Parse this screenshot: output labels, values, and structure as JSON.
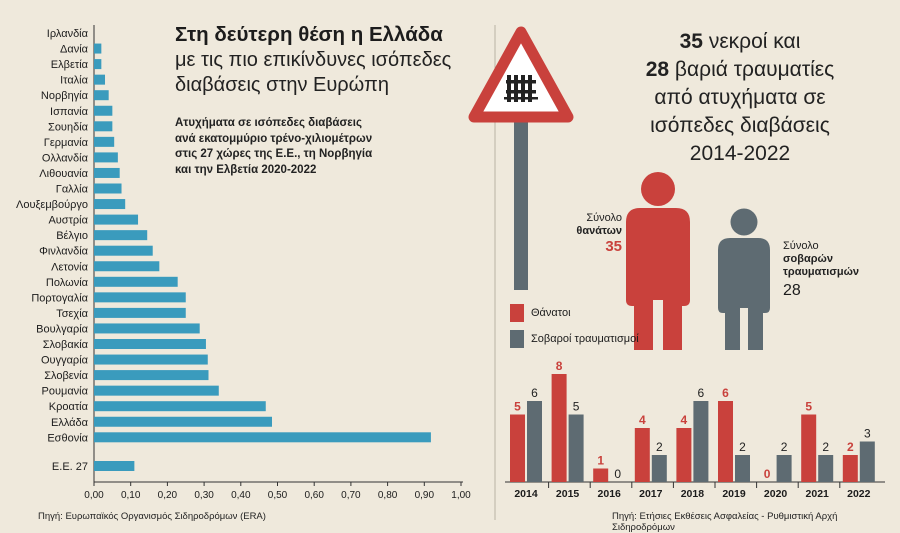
{
  "left": {
    "title_bold": "Στη δεύτερη θέση η Ελλάδα",
    "title_line2": "με τις πιο επικίνδυνες ισόπεδες",
    "title_line3": "διαβάσεις στην Ευρώπη",
    "desc_line1": "Ατυχήματα σε ισόπεδες διαβάσεις",
    "desc_line2": "ανά εκατομμύριο τρένο-χιλιομέτρων",
    "desc_line3": "στις 27 χώρες της Ε.Ε., τη Νορβηγία",
    "desc_line4": "και την Ελβετία 2020-2022",
    "source": "Πηγή: Ευρωπαϊκός Οργανισμός Σιδηροδρόμων (ERA)"
  },
  "right": {
    "title_num1": "35",
    "title_rest1": " νεκροί και",
    "title_num2": "28",
    "title_rest2": " βαριά τραυματίες",
    "title_line3": "από ατυχήματα σε",
    "title_line4": "ισόπεδες διαβάσεις",
    "title_line5": "2014-2022",
    "deaths_label_1": "Σύνολο",
    "deaths_label_2": "θανάτων",
    "deaths_total": "35",
    "injuries_label_1": "Σύνολο",
    "injuries_label_2": "σοβαρών",
    "injuries_label_3": "τραυματισμών",
    "injuries_total": "28",
    "legend_deaths": "Θάνατοι",
    "legend_injuries": "Σοβαροί τραυματισμοί",
    "source": "Πηγή: Ετήσιες Εκθέσεις Ασφαλείας - Ρυθμιστική Αρχή Σιδηροδρόμων"
  },
  "colors": {
    "background": "#efe9dc",
    "bar_blue": "#3a9bbd",
    "deaths_red": "#c9413c",
    "injuries_gray": "#5e6b72",
    "sign_border": "#c9413c"
  },
  "icons": [
    "railway-crossing-sign-icon",
    "person-red-icon",
    "person-gray-icon"
  ],
  "chart_data": [
    {
      "type": "bar",
      "orientation": "horizontal",
      "categories": [
        "Ιρλανδία",
        "Δανία",
        "Ελβετία",
        "Ιταλία",
        "Νορβηγία",
        "Ισπανία",
        "Σουηδία",
        "Γερμανία",
        "Ολλανδία",
        "Λιθουανία",
        "Γαλλία",
        "Λουξεμβούργο",
        "Αυστρία",
        "Βέλγιο",
        "Φινλανδία",
        "Λετονία",
        "Πολωνία",
        "Πορτογαλία",
        "Τσεχία",
        "Βουλγαρία",
        "Σλοβακία",
        "Ουγγαρία",
        "Σλοβενία",
        "Ρουμανία",
        "Κροατία",
        "Ελλάδα",
        "Εσθονία"
      ],
      "values": [
        0.0,
        0.02,
        0.02,
        0.03,
        0.04,
        0.05,
        0.05,
        0.055,
        0.065,
        0.07,
        0.075,
        0.085,
        0.12,
        0.145,
        0.16,
        0.178,
        0.228,
        0.25,
        0.25,
        0.288,
        0.305,
        0.31,
        0.312,
        0.34,
        0.468,
        0.485,
        0.918
      ],
      "extra_category": "Ε.Ε. 27",
      "extra_value": 0.11,
      "xlim": [
        0,
        1.0
      ],
      "ticks": [
        "0,00",
        "0,10",
        "0,20",
        "0,30",
        "0,40",
        "0,50",
        "0,60",
        "0,70",
        "0,80",
        "0,90",
        "1,00"
      ]
    },
    {
      "type": "bar",
      "categories": [
        "2014",
        "2015",
        "2016",
        "2017",
        "2018",
        "2019",
        "2020",
        "2021",
        "2022"
      ],
      "series": [
        {
          "name": "Θάνατοι",
          "values": [
            5,
            8,
            1,
            4,
            4,
            6,
            0,
            5,
            2
          ]
        },
        {
          "name": "Σοβαροί τραυματισμοί",
          "values": [
            6,
            5,
            0,
            2,
            6,
            2,
            2,
            2,
            3
          ]
        }
      ],
      "ylim": [
        0,
        8
      ]
    }
  ]
}
